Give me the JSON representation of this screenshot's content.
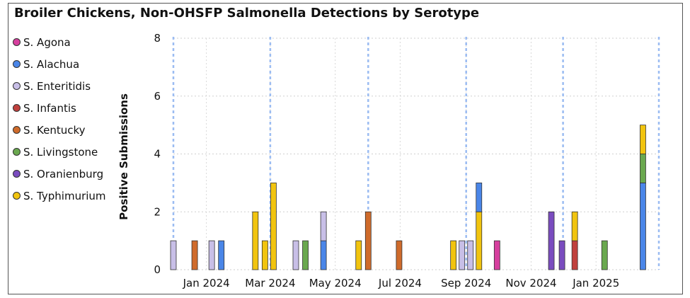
{
  "chart_data": {
    "type": "bar",
    "title": "Broiler Chickens, Non-OHSFP Salmonella Detections by Serotype",
    "xlabel": "",
    "ylabel": "Positive Submissions",
    "ylim": [
      0,
      8
    ],
    "yticks": [
      0,
      2,
      4,
      6,
      8
    ],
    "xlim": [
      "2023-12-01",
      "2025-03-01"
    ],
    "xticks": [
      "2024-01-01",
      "2024-03-01",
      "2024-05-01",
      "2024-07-01",
      "2024-09-01",
      "2024-11-01",
      "2025-01-01"
    ],
    "xtick_labels": [
      "Jan 2024",
      "Mar 2024",
      "May 2024",
      "Jul 2024",
      "Sep 2024",
      "Nov 2024",
      "Jan 2025"
    ],
    "month_lines": [
      "2023-12-01",
      "2024-03-01",
      "2024-06-01",
      "2024-09-01",
      "2024-12-01",
      "2025-03-01"
    ],
    "grid": true,
    "legend_position": "left",
    "serotypes": [
      {
        "name": "S. Agona",
        "color": "#d63f9e"
      },
      {
        "name": "S. Alachua",
        "color": "#4a86e8"
      },
      {
        "name": "S. Enteritidis",
        "color": "#c8bfe7"
      },
      {
        "name": "S. Infantis",
        "color": "#c0413d"
      },
      {
        "name": "S. Kentucky",
        "color": "#cf6b2b"
      },
      {
        "name": "S. Livingstone",
        "color": "#6aa84f"
      },
      {
        "name": "S. Oranienburg",
        "color": "#7a4cbf"
      },
      {
        "name": "S. Typhimurium",
        "color": "#f1c40f"
      }
    ],
    "bars": [
      {
        "date": "2023-12-01",
        "segments": [
          {
            "serotype": "S. Enteritidis",
            "value": 1
          }
        ]
      },
      {
        "date": "2023-12-21",
        "segments": [
          {
            "serotype": "S. Kentucky",
            "value": 1
          }
        ]
      },
      {
        "date": "2024-01-06",
        "segments": [
          {
            "serotype": "S. Enteritidis",
            "value": 1
          }
        ]
      },
      {
        "date": "2024-01-15",
        "segments": [
          {
            "serotype": "S. Alachua",
            "value": 1
          }
        ]
      },
      {
        "date": "2024-02-16",
        "segments": [
          {
            "serotype": "S. Typhimurium",
            "value": 2
          }
        ]
      },
      {
        "date": "2024-02-25",
        "segments": [
          {
            "serotype": "S. Typhimurium",
            "value": 1
          }
        ]
      },
      {
        "date": "2024-03-04",
        "segments": [
          {
            "serotype": "S. Typhimurium",
            "value": 3
          }
        ]
      },
      {
        "date": "2024-03-25",
        "segments": [
          {
            "serotype": "S. Enteritidis",
            "value": 1
          }
        ]
      },
      {
        "date": "2024-04-03",
        "segments": [
          {
            "serotype": "S. Livingstone",
            "value": 1
          }
        ]
      },
      {
        "date": "2024-04-20",
        "segments": [
          {
            "serotype": "S. Alachua",
            "value": 1
          },
          {
            "serotype": "S. Enteritidis",
            "value": 1
          }
        ]
      },
      {
        "date": "2024-05-23",
        "segments": [
          {
            "serotype": "S. Typhimurium",
            "value": 1
          }
        ]
      },
      {
        "date": "2024-06-01",
        "segments": [
          {
            "serotype": "S. Kentucky",
            "value": 2
          }
        ]
      },
      {
        "date": "2024-06-30",
        "segments": [
          {
            "serotype": "S. Kentucky",
            "value": 1
          }
        ]
      },
      {
        "date": "2024-08-20",
        "segments": [
          {
            "serotype": "S. Typhimurium",
            "value": 1
          }
        ]
      },
      {
        "date": "2024-08-28",
        "segments": [
          {
            "serotype": "S. Enteritidis",
            "value": 1
          }
        ]
      },
      {
        "date": "2024-09-05",
        "segments": [
          {
            "serotype": "S. Enteritidis",
            "value": 1
          }
        ]
      },
      {
        "date": "2024-09-13",
        "segments": [
          {
            "serotype": "S. Typhimurium",
            "value": 2
          },
          {
            "serotype": "S. Alachua",
            "value": 1
          }
        ]
      },
      {
        "date": "2024-09-30",
        "segments": [
          {
            "serotype": "S. Agona",
            "value": 1
          }
        ]
      },
      {
        "date": "2024-11-20",
        "segments": [
          {
            "serotype": "S. Oranienburg",
            "value": 2
          }
        ]
      },
      {
        "date": "2024-11-30",
        "segments": [
          {
            "serotype": "S. Oranienburg",
            "value": 1
          }
        ]
      },
      {
        "date": "2024-12-12",
        "segments": [
          {
            "serotype": "S. Infantis",
            "value": 1
          },
          {
            "serotype": "S. Typhimurium",
            "value": 1
          }
        ]
      },
      {
        "date": "2025-01-09",
        "segments": [
          {
            "serotype": "S. Livingstone",
            "value": 1
          }
        ]
      },
      {
        "date": "2025-02-14",
        "segments": [
          {
            "serotype": "S. Alachua",
            "value": 3
          },
          {
            "serotype": "S. Livingstone",
            "value": 1
          },
          {
            "serotype": "S. Typhimurium",
            "value": 1
          }
        ]
      }
    ]
  }
}
